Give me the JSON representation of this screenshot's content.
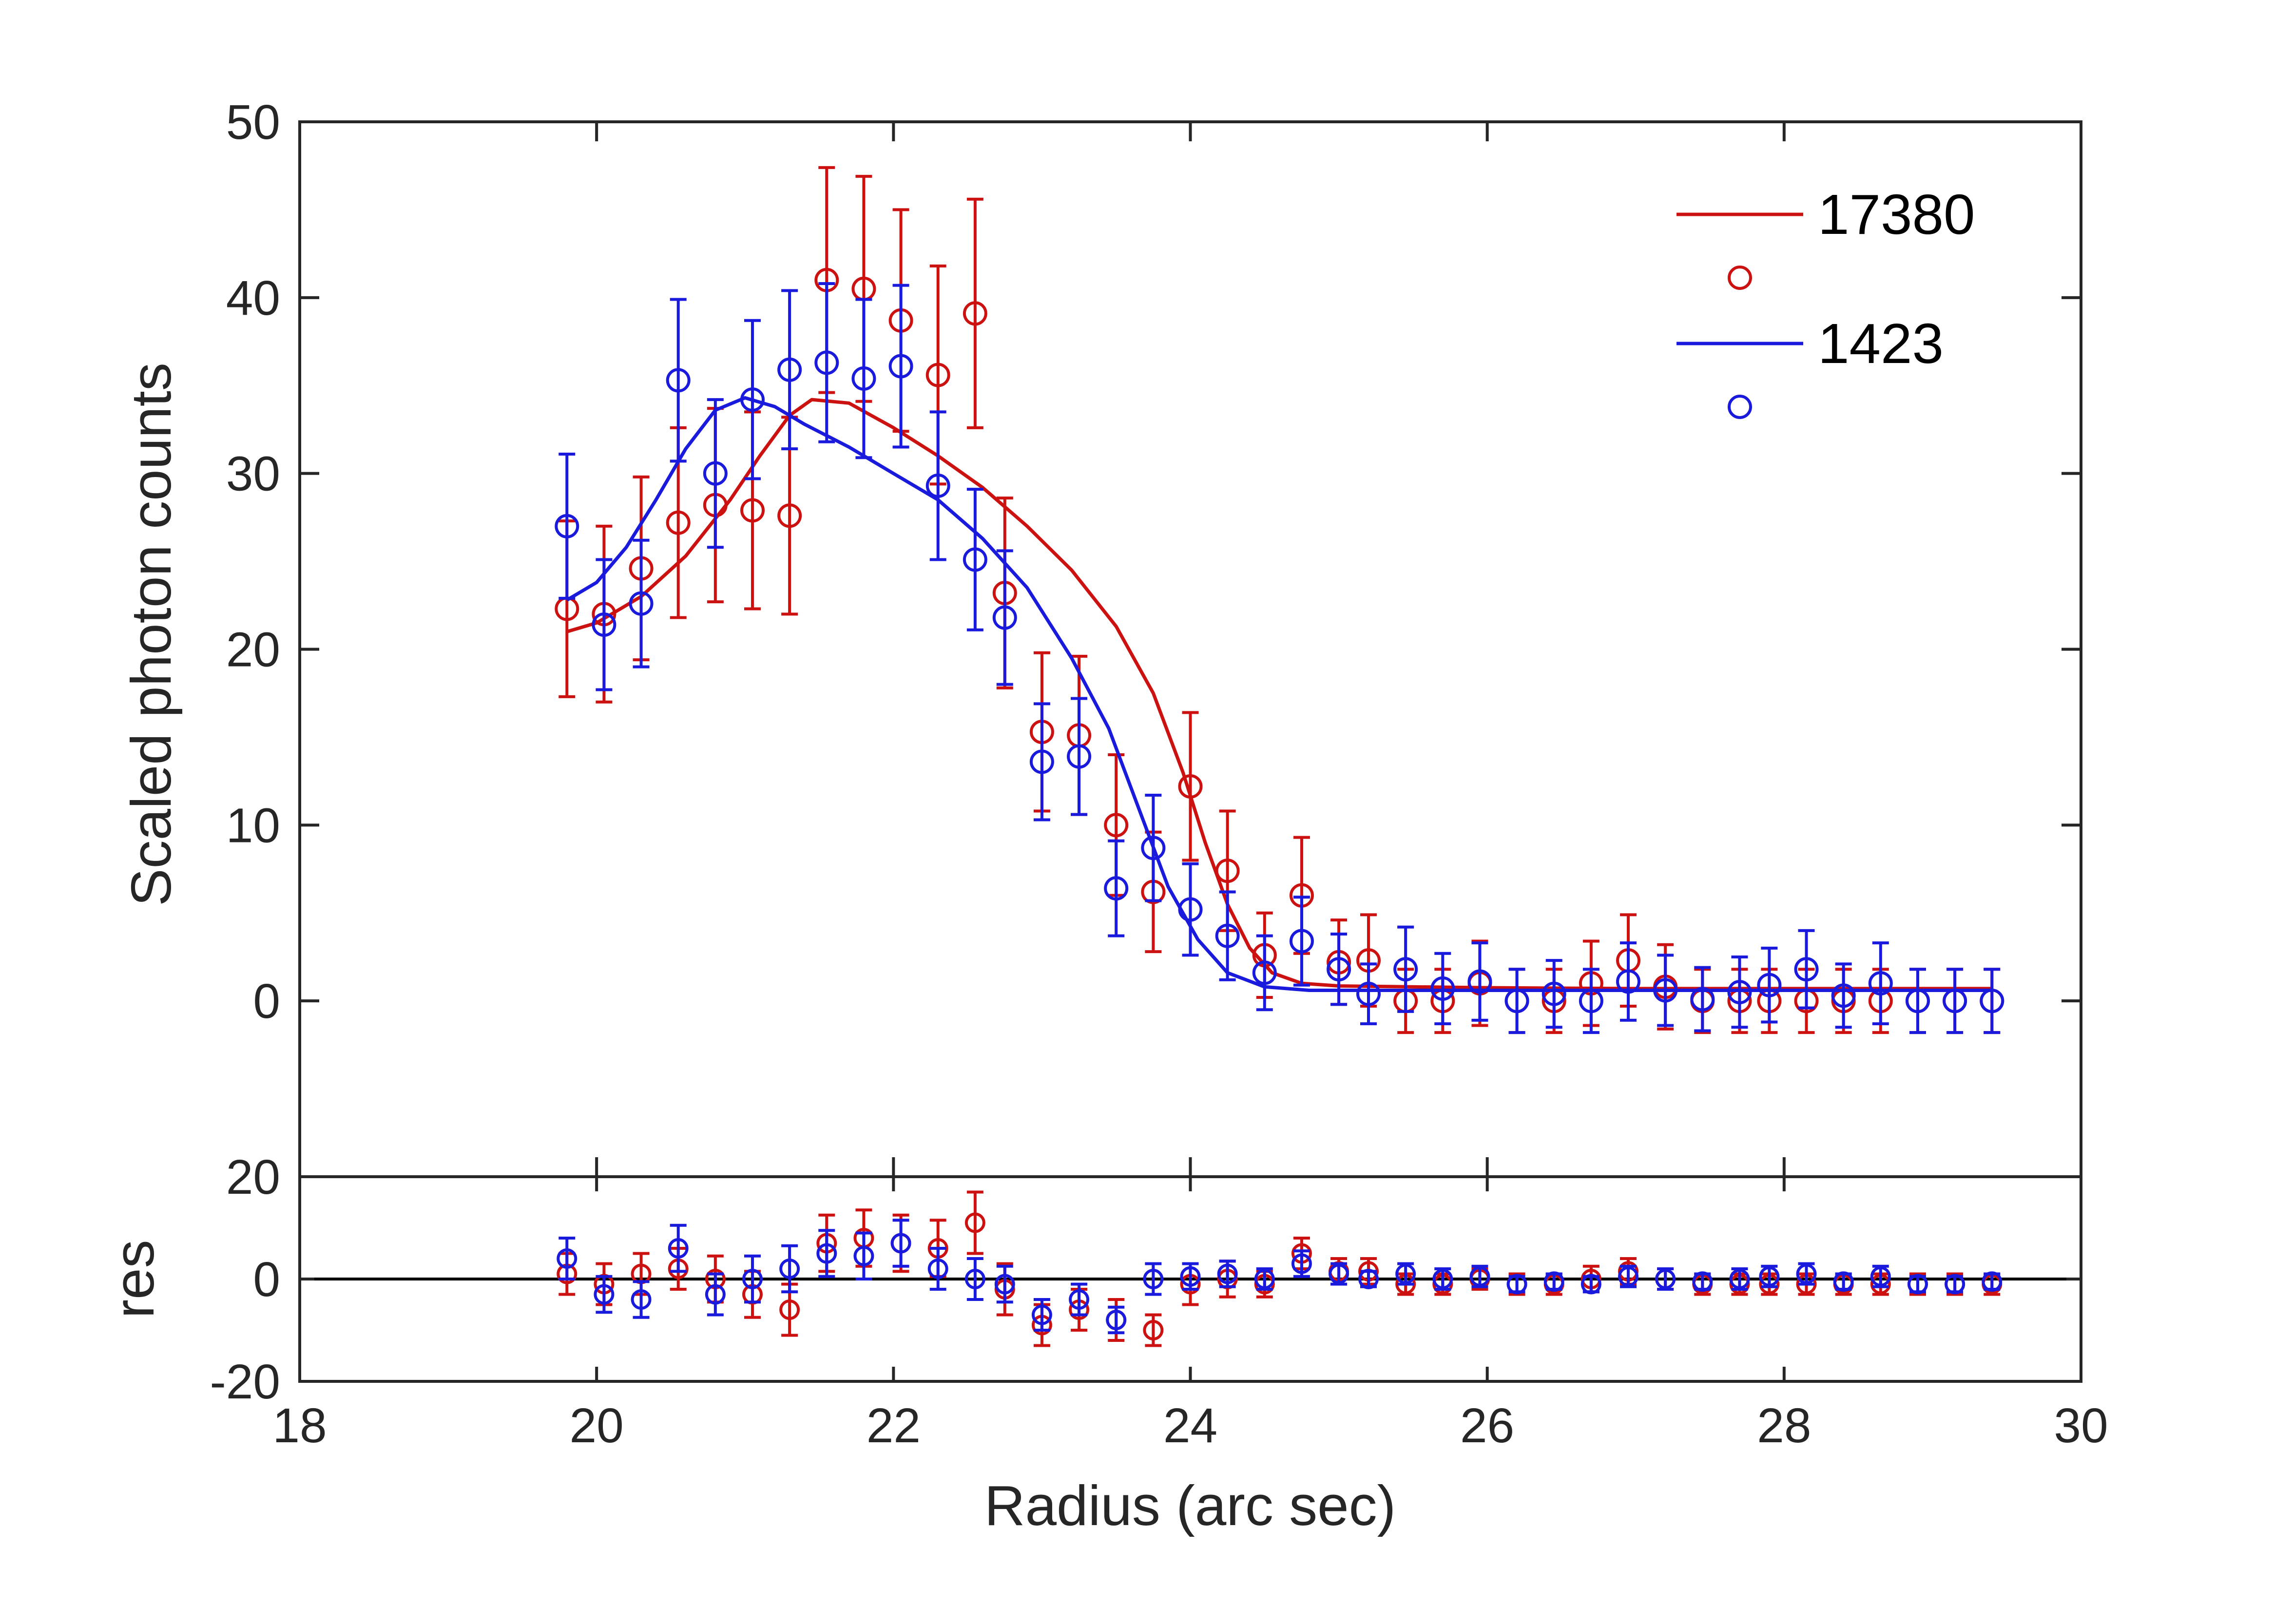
{
  "chart_data": [
    {
      "type": "scatter",
      "panel": "main",
      "xlabel": "",
      "ylabel": "Scaled photon counts",
      "xlim": [
        18,
        30
      ],
      "ylim": [
        -10,
        50
      ],
      "x_ticks": [
        20,
        22,
        24,
        26,
        28
      ],
      "y_ticks": [
        0,
        10,
        20,
        30,
        40,
        50
      ],
      "grid": false,
      "legend_position": "top-right",
      "series": [
        {
          "name": "17380",
          "color": "#cc1111",
          "marker": "circle",
          "points": [
            [
              19.8,
              22.3,
              5.0
            ],
            [
              20.05,
              22.0,
              5.0
            ],
            [
              20.3,
              24.6,
              5.2
            ],
            [
              20.55,
              27.2,
              5.4
            ],
            [
              20.8,
              28.2,
              5.5
            ],
            [
              21.05,
              27.9,
              5.6
            ],
            [
              21.3,
              27.6,
              5.6
            ],
            [
              21.55,
              41.0,
              6.4
            ],
            [
              21.8,
              40.5,
              6.4
            ],
            [
              22.05,
              38.7,
              6.3
            ],
            [
              22.3,
              35.6,
              6.2
            ],
            [
              22.55,
              39.1,
              6.5
            ],
            [
              22.75,
              23.2,
              5.4
            ],
            [
              23.0,
              15.3,
              4.5
            ],
            [
              23.25,
              15.1,
              4.5
            ],
            [
              23.5,
              10.0,
              4.0
            ],
            [
              23.75,
              6.2,
              3.4
            ],
            [
              24.0,
              12.2,
              4.2
            ],
            [
              24.25,
              7.4,
              3.4
            ],
            [
              24.5,
              2.6,
              2.4
            ],
            [
              24.75,
              6.0,
              3.3
            ],
            [
              25.0,
              2.2,
              2.4
            ],
            [
              25.2,
              2.3,
              2.6
            ],
            [
              25.45,
              0.0,
              1.8
            ],
            [
              25.7,
              0.0,
              1.8
            ],
            [
              25.95,
              1.0,
              2.4
            ],
            [
              26.2,
              0.0,
              1.8
            ],
            [
              26.45,
              0.0,
              1.8
            ],
            [
              26.7,
              1.0,
              2.4
            ],
            [
              26.95,
              2.3,
              2.6
            ],
            [
              27.2,
              0.8,
              2.4
            ],
            [
              27.45,
              0.0,
              1.8
            ],
            [
              27.7,
              0.0,
              1.8
            ],
            [
              27.9,
              0.0,
              1.8
            ],
            [
              28.15,
              0.0,
              1.8
            ],
            [
              28.4,
              0.0,
              1.8
            ],
            [
              28.65,
              0.0,
              1.8
            ],
            [
              28.9,
              0.0,
              1.8
            ],
            [
              29.15,
              0.0,
              1.8
            ],
            [
              29.4,
              0.0,
              1.8
            ]
          ],
          "model": [
            [
              19.8,
              21.0
            ],
            [
              20.0,
              21.5
            ],
            [
              20.3,
              23.0
            ],
            [
              20.6,
              25.3
            ],
            [
              20.9,
              28.5
            ],
            [
              21.1,
              31.0
            ],
            [
              21.3,
              33.3
            ],
            [
              21.45,
              34.2
            ],
            [
              21.7,
              34.0
            ],
            [
              22.0,
              32.6
            ],
            [
              22.3,
              31.0
            ],
            [
              22.6,
              29.2
            ],
            [
              22.9,
              27.0
            ],
            [
              23.2,
              24.5
            ],
            [
              23.5,
              21.3
            ],
            [
              23.75,
              17.5
            ],
            [
              23.95,
              13.0
            ],
            [
              24.1,
              9.0
            ],
            [
              24.25,
              5.5
            ],
            [
              24.4,
              3.0
            ],
            [
              24.55,
              1.6
            ],
            [
              24.75,
              1.0
            ],
            [
              25.0,
              0.85
            ],
            [
              26.0,
              0.75
            ],
            [
              27.0,
              0.7
            ],
            [
              28.0,
              0.7
            ],
            [
              29.4,
              0.7
            ]
          ]
        },
        {
          "name": "1423",
          "color": "#1a1adc",
          "marker": "circle",
          "points": [
            [
              19.8,
              27.0,
              4.1
            ],
            [
              20.05,
              21.4,
              3.7
            ],
            [
              20.3,
              22.6,
              3.6
            ],
            [
              20.55,
              35.3,
              4.6
            ],
            [
              20.8,
              30.0,
              4.2
            ],
            [
              21.05,
              34.2,
              4.5
            ],
            [
              21.3,
              35.9,
              4.5
            ],
            [
              21.55,
              36.3,
              4.5
            ],
            [
              21.8,
              35.4,
              4.5
            ],
            [
              22.05,
              36.1,
              4.6
            ],
            [
              22.3,
              29.3,
              4.2
            ],
            [
              22.55,
              25.1,
              4.0
            ],
            [
              22.75,
              21.8,
              3.8
            ],
            [
              23.0,
              13.6,
              3.3
            ],
            [
              23.25,
              13.9,
              3.3
            ],
            [
              23.5,
              6.4,
              2.7
            ],
            [
              23.75,
              8.7,
              3.0
            ],
            [
              24.0,
              5.2,
              2.6
            ],
            [
              24.25,
              3.7,
              2.5
            ],
            [
              24.5,
              1.6,
              2.1
            ],
            [
              24.75,
              3.4,
              2.5
            ],
            [
              25.0,
              1.8,
              2.0
            ],
            [
              25.2,
              0.4,
              1.7
            ],
            [
              25.45,
              1.8,
              2.4
            ],
            [
              25.7,
              0.7,
              2.0
            ],
            [
              25.95,
              1.1,
              2.2
            ],
            [
              26.2,
              0.0,
              1.8
            ],
            [
              26.45,
              0.4,
              1.9
            ],
            [
              26.7,
              0.0,
              1.8
            ],
            [
              26.95,
              1.1,
              2.2
            ],
            [
              27.2,
              0.6,
              2.0
            ],
            [
              27.45,
              0.1,
              1.8
            ],
            [
              27.7,
              0.5,
              2.0
            ],
            [
              27.9,
              0.9,
              2.1
            ],
            [
              28.15,
              1.8,
              2.2
            ],
            [
              28.4,
              0.3,
              1.8
            ],
            [
              28.65,
              1.0,
              2.3
            ],
            [
              28.9,
              0.0,
              1.8
            ],
            [
              29.15,
              0.0,
              1.8
            ],
            [
              29.4,
              0.0,
              1.8
            ]
          ],
          "model": [
            [
              19.8,
              22.8
            ],
            [
              20.0,
              23.8
            ],
            [
              20.2,
              25.8
            ],
            [
              20.4,
              28.5
            ],
            [
              20.6,
              31.4
            ],
            [
              20.8,
              33.6
            ],
            [
              21.0,
              34.3
            ],
            [
              21.2,
              33.8
            ],
            [
              21.4,
              32.8
            ],
            [
              21.7,
              31.5
            ],
            [
              22.0,
              30.0
            ],
            [
              22.3,
              28.5
            ],
            [
              22.6,
              26.3
            ],
            [
              22.9,
              23.5
            ],
            [
              23.2,
              19.5
            ],
            [
              23.45,
              15.5
            ],
            [
              23.65,
              11.0
            ],
            [
              23.85,
              6.5
            ],
            [
              24.05,
              3.5
            ],
            [
              24.25,
              1.6
            ],
            [
              24.5,
              0.8
            ],
            [
              24.8,
              0.6
            ],
            [
              25.5,
              0.6
            ],
            [
              27.0,
              0.6
            ],
            [
              29.4,
              0.6
            ]
          ]
        }
      ]
    },
    {
      "type": "scatter",
      "panel": "residuals",
      "xlabel": "Radius (arc sec)",
      "ylabel": "res",
      "xlim": [
        18,
        30
      ],
      "ylim": [
        -20,
        20
      ],
      "x_ticks": [
        18,
        20,
        22,
        24,
        26,
        28,
        30
      ],
      "y_ticks": [
        -20,
        0,
        20
      ],
      "zero_line": true,
      "series": [
        {
          "name": "17380",
          "color": "#cc1111",
          "points": [
            [
              19.8,
              1.0,
              4.0
            ],
            [
              20.05,
              -1.0,
              4.0
            ],
            [
              20.3,
              1.0,
              4.0
            ],
            [
              20.55,
              2.0,
              4.0
            ],
            [
              20.8,
              0.0,
              4.5
            ],
            [
              21.05,
              -3.0,
              4.5
            ],
            [
              21.3,
              -6.0,
              5.0
            ],
            [
              21.55,
              7.0,
              5.5
            ],
            [
              21.8,
              8.0,
              5.5
            ],
            [
              22.05,
              7.0,
              5.5
            ],
            [
              22.3,
              6.0,
              5.5
            ],
            [
              22.55,
              11.0,
              6.0
            ],
            [
              22.75,
              -2.0,
              5.0
            ],
            [
              23.0,
              -9.0,
              4.0
            ],
            [
              23.25,
              -6.0,
              4.0
            ],
            [
              23.5,
              -8.0,
              4.0
            ],
            [
              23.75,
              -10.0,
              3.0
            ],
            [
              24.0,
              -1.0,
              4.0
            ],
            [
              24.25,
              0.0,
              3.5
            ],
            [
              24.5,
              -1.0,
              2.5
            ],
            [
              24.75,
              5.0,
              3.0
            ],
            [
              25.0,
              1.5,
              2.5
            ],
            [
              25.2,
              1.5,
              2.5
            ],
            [
              25.45,
              -1.0,
              2.0
            ],
            [
              25.7,
              -1.0,
              2.0
            ],
            [
              25.95,
              0.0,
              2.0
            ],
            [
              26.2,
              -1.0,
              2.0
            ],
            [
              26.45,
              -1.0,
              2.0
            ],
            [
              26.7,
              0.0,
              2.5
            ],
            [
              26.95,
              1.5,
              2.5
            ],
            [
              27.2,
              0.0,
              2.0
            ],
            [
              27.45,
              -1.0,
              2.0
            ],
            [
              27.7,
              -1.0,
              2.0
            ],
            [
              27.9,
              -1.0,
              2.0
            ],
            [
              28.15,
              -1.0,
              2.0
            ],
            [
              28.4,
              -1.0,
              2.0
            ],
            [
              28.65,
              -1.0,
              2.0
            ],
            [
              28.9,
              -1.0,
              2.0
            ],
            [
              29.15,
              -1.0,
              2.0
            ],
            [
              29.4,
              -1.0,
              2.0
            ]
          ]
        },
        {
          "name": "1423",
          "color": "#1a1adc",
          "points": [
            [
              19.8,
              4.0,
              4.0
            ],
            [
              20.05,
              -3.0,
              3.5
            ],
            [
              20.3,
              -4.0,
              3.5
            ],
            [
              20.55,
              6.0,
              4.5
            ],
            [
              20.8,
              -3.0,
              4.0
            ],
            [
              21.05,
              0.0,
              4.5
            ],
            [
              21.3,
              2.0,
              4.5
            ],
            [
              21.55,
              5.0,
              4.5
            ],
            [
              21.8,
              4.5,
              4.5
            ],
            [
              22.05,
              7.0,
              4.5
            ],
            [
              22.3,
              2.0,
              4.0
            ],
            [
              22.55,
              0.0,
              4.0
            ],
            [
              22.75,
              -1.0,
              3.5
            ],
            [
              23.0,
              -7.0,
              3.0
            ],
            [
              23.25,
              -4.0,
              3.0
            ],
            [
              23.5,
              -8.0,
              2.5
            ],
            [
              23.75,
              0.0,
              3.0
            ],
            [
              24.0,
              0.5,
              2.5
            ],
            [
              24.25,
              1.0,
              2.5
            ],
            [
              24.5,
              0.0,
              2.0
            ],
            [
              24.75,
              3.0,
              2.5
            ],
            [
              25.0,
              1.0,
              2.0
            ],
            [
              25.2,
              0.0,
              1.5
            ],
            [
              25.45,
              1.0,
              2.0
            ],
            [
              25.7,
              0.0,
              2.0
            ],
            [
              25.95,
              0.5,
              2.0
            ],
            [
              26.2,
              -1.0,
              1.5
            ],
            [
              26.45,
              -0.5,
              1.5
            ],
            [
              26.7,
              -1.0,
              1.5
            ],
            [
              26.95,
              0.5,
              2.0
            ],
            [
              27.2,
              0.0,
              2.0
            ],
            [
              27.45,
              -0.5,
              1.5
            ],
            [
              27.7,
              0.0,
              2.0
            ],
            [
              27.9,
              0.5,
              2.0
            ],
            [
              28.15,
              1.0,
              2.0
            ],
            [
              28.4,
              -0.5,
              1.5
            ],
            [
              28.65,
              0.5,
              2.0
            ],
            [
              28.9,
              -1.0,
              1.5
            ],
            [
              29.15,
              -1.0,
              1.5
            ],
            [
              29.4,
              -0.5,
              1.5
            ]
          ]
        }
      ]
    }
  ]
}
